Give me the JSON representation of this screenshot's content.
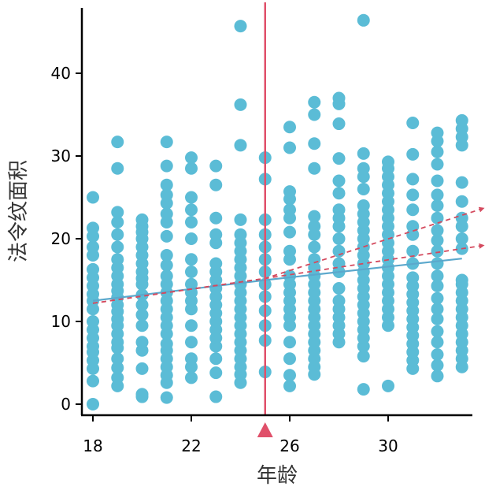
{
  "chart_data": {
    "type": "scatter",
    "title": "",
    "xlabel": "年龄",
    "ylabel": "法令纹面积",
    "xlim": [
      17.5,
      33.6
    ],
    "ylim": [
      -1.0,
      48.0
    ],
    "x_ticks": [
      18,
      22,
      26,
      30
    ],
    "x_tick_labels": [
      "18",
      "22",
      "26",
      "30"
    ],
    "y_ticks": [
      0,
      10,
      20,
      30,
      40
    ],
    "y_tick_labels": [
      "0",
      "10",
      "20",
      "30",
      "40"
    ],
    "grid": false,
    "colors": {
      "points": "#5bbcd6",
      "fit_line": "#5ba8cc",
      "cutoff": "#e0506a",
      "trend": "#d44a5e",
      "axis": "#000000"
    },
    "cutoff": {
      "x": 25,
      "marker": "triangle-up"
    },
    "fit_line": {
      "x": [
        18,
        25,
        33
      ],
      "y": [
        12.5,
        15.0,
        17.6
      ]
    },
    "trend_lines": [
      {
        "x": [
          18,
          25,
          33.9
        ],
        "y": [
          12.2,
          15.2,
          23.7
        ]
      },
      {
        "x": [
          18,
          25,
          33.9
        ],
        "y": [
          12.2,
          15.2,
          19.2
        ]
      }
    ],
    "series": [
      {
        "x": 18,
        "values": [
          0.0,
          2.8,
          4.3,
          5.3,
          6.3,
          7.0,
          8.0,
          9.0,
          10.0,
          11.5,
          12.5,
          13.3,
          14.3,
          15.3,
          16.3,
          18.0,
          19.0,
          20.3,
          21.3,
          25.0
        ]
      },
      {
        "x": 19,
        "values": [
          2.2,
          3.2,
          4.4,
          5.5,
          6.8,
          7.5,
          8.5,
          9.5,
          10.3,
          11.2,
          12.0,
          12.9,
          13.7,
          14.5,
          15.5,
          16.5,
          17.5,
          19.0,
          20.5,
          22.0,
          23.2,
          28.5,
          31.7
        ]
      },
      {
        "x": 20,
        "values": [
          0.9,
          1.2,
          4.3,
          6.5,
          7.5,
          9.5,
          10.8,
          12.0,
          13.2,
          14.5,
          15.2,
          16.0,
          17.0,
          18.0,
          19.0,
          20.0,
          20.8,
          21.5,
          22.3
        ]
      },
      {
        "x": 21,
        "values": [
          0.8,
          2.6,
          3.5,
          4.5,
          5.5,
          6.5,
          7.3,
          8.5,
          9.5,
          10.5,
          11.5,
          12.5,
          13.5,
          14.5,
          15.5,
          16.8,
          18.0,
          20.3,
          22.0,
          23.0,
          24.3,
          25.3,
          26.5,
          28.8,
          31.7
        ]
      },
      {
        "x": 22,
        "values": [
          3.2,
          4.5,
          5.5,
          7.5,
          9.5,
          11.5,
          12.5,
          13.5,
          14.5,
          16.0,
          17.5,
          20.0,
          22.0,
          23.5,
          25.0,
          28.5,
          29.8
        ]
      },
      {
        "x": 23,
        "values": [
          0.9,
          3.8,
          5.5,
          7.0,
          8.0,
          9.0,
          10.0,
          11.0,
          12.0,
          13.0,
          14.0,
          15.0,
          16.0,
          17.0,
          19.5,
          20.5,
          22.5,
          26.5,
          28.8
        ]
      },
      {
        "x": 24,
        "values": [
          2.6,
          3.6,
          4.5,
          5.5,
          6.5,
          7.5,
          8.5,
          9.5,
          10.5,
          11.5,
          12.5,
          13.5,
          14.5,
          15.5,
          16.5,
          17.5,
          18.5,
          19.5,
          20.5,
          22.3,
          31.3,
          36.2,
          45.7
        ]
      },
      {
        "x": 25,
        "values": [
          3.9,
          7.7,
          9.5,
          11.3,
          13.0,
          14.5,
          16.0,
          17.5,
          19.0,
          20.5,
          22.3,
          27.2,
          29.8
        ]
      },
      {
        "x": 26,
        "values": [
          2.2,
          3.5,
          5.5,
          7.5,
          9.5,
          10.5,
          11.5,
          12.5,
          13.5,
          14.5,
          15.5,
          17.5,
          18.5,
          20.8,
          22.5,
          23.5,
          24.8,
          25.7,
          31.0,
          33.5
        ]
      },
      {
        "x": 27,
        "values": [
          3.6,
          4.5,
          5.5,
          6.5,
          7.5,
          8.5,
          9.5,
          10.5,
          11.5,
          12.5,
          13.5,
          14.5,
          15.5,
          16.5,
          17.5,
          19.0,
          20.5,
          21.5,
          22.7,
          28.5,
          31.5,
          35.0,
          36.5
        ]
      },
      {
        "x": 28,
        "values": [
          7.5,
          8.5,
          9.5,
          10.5,
          11.5,
          12.5,
          14.0,
          16.0,
          17.0,
          18.5,
          20.0,
          21.5,
          22.5,
          23.5,
          25.5,
          27.0,
          29.7,
          33.9,
          36.3,
          37.0
        ]
      },
      {
        "x": 29,
        "values": [
          1.8,
          5.8,
          7.0,
          8.0,
          9.0,
          10.0,
          11.0,
          12.0,
          13.0,
          14.0,
          15.0,
          16.0,
          17.0,
          18.0,
          19.0,
          20.0,
          21.0,
          22.0,
          23.0,
          24.0,
          26.0,
          27.5,
          28.5,
          30.3,
          46.4
        ]
      },
      {
        "x": 30,
        "values": [
          2.2,
          9.5,
          10.5,
          11.5,
          12.5,
          13.5,
          14.5,
          15.5,
          16.5,
          17.5,
          18.5,
          19.5,
          20.5,
          21.5,
          22.5,
          23.5,
          24.5,
          25.5,
          26.5,
          27.5,
          28.5,
          29.3
        ]
      },
      {
        "x": 31,
        "values": [
          4.3,
          5.3,
          6.3,
          7.3,
          8.3,
          9.3,
          10.3,
          11.3,
          12.3,
          13.3,
          14.3,
          15.3,
          17.0,
          18.5,
          20.5,
          21.5,
          23.5,
          25.3,
          27.2,
          30.2,
          34.0
        ]
      },
      {
        "x": 32,
        "values": [
          3.4,
          4.7,
          6.0,
          7.5,
          8.8,
          10.3,
          11.5,
          12.8,
          14.3,
          15.5,
          17.0,
          18.5,
          19.8,
          21.0,
          22.5,
          24.0,
          25.3,
          27.0,
          29.0,
          30.5,
          31.8,
          32.8
        ]
      },
      {
        "x": 33,
        "values": [
          4.5,
          5.5,
          6.5,
          7.5,
          8.5,
          9.5,
          10.5,
          11.5,
          12.5,
          13.5,
          14.5,
          15.0,
          18.8,
          20.0,
          21.5,
          22.5,
          24.5,
          26.8,
          31.3,
          32.3,
          33.3,
          34.3
        ]
      }
    ]
  }
}
